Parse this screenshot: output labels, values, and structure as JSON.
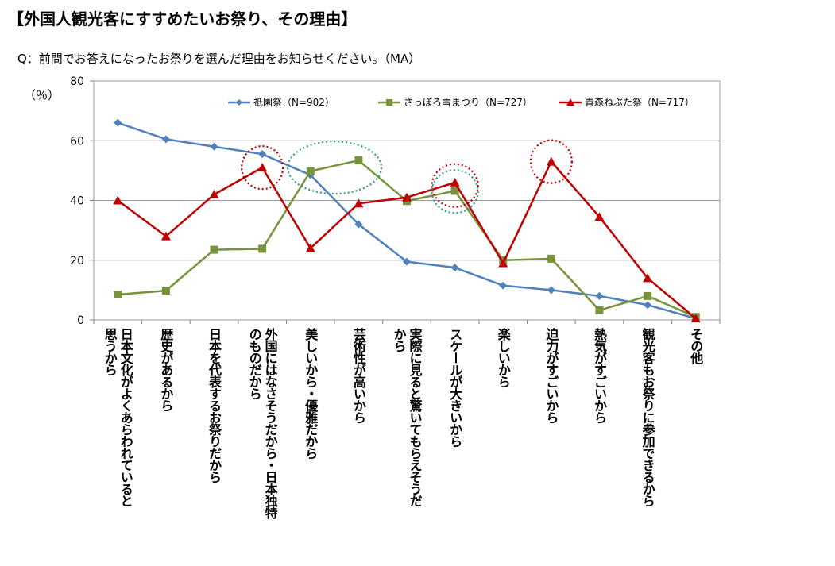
{
  "header": {
    "title": "【外国人観光客にすすめたいお祭り、その理由】",
    "question": "Q：前問でお答えになったお祭りを選んだ理由をお知らせください。（MA）"
  },
  "chart_data": {
    "type": "line",
    "ylabel": "（％）",
    "ylim": [
      0,
      80
    ],
    "yticks": [
      0,
      20,
      40,
      60,
      80
    ],
    "grid": true,
    "legend_position": "top",
    "categories": [
      "日本文化がよくあらわれていると思うから",
      "歴史があるから",
      "日本を代表するお祭りだから",
      "外国にはなさそうだから・日本独特のものだから",
      "美しいから・優雅だから",
      "芸術性が高いから",
      "実際に見ると驚いてもらえそうだから",
      "スケールが大きいから",
      "楽しいから",
      "迫力がすごいから",
      "熱気がすごいから",
      "観光客もお祭りに参加できるから",
      "その他"
    ],
    "category_lines": [
      [
        "日本文化がよくあらわれていると",
        "思うから"
      ],
      [
        "歴史があるから"
      ],
      [
        "日本を代表するお祭りだから"
      ],
      [
        "外国にはなさそうだから・日本独特",
        "のものだから"
      ],
      [
        "美しいから・優雅だから"
      ],
      [
        "芸術性が高いから"
      ],
      [
        "実際に見ると驚いてもらえそうだ",
        "から"
      ],
      [
        "スケールが大きいから"
      ],
      [
        "楽しいから"
      ],
      [
        "迫力がすごいから"
      ],
      [
        "熱気がすごいから"
      ],
      [
        "観光客もお祭りに参加できるから"
      ],
      [
        "その他"
      ]
    ],
    "series": [
      {
        "name": "祇園祭（N=902）",
        "color": "#4F81BD",
        "marker": "diamond",
        "values": [
          66,
          60.5,
          58,
          55.5,
          48.5,
          32,
          19.5,
          17.5,
          11.5,
          10,
          8,
          5,
          0.5
        ]
      },
      {
        "name": "さっぽろ雪まつり（N=727）",
        "color": "#77933C",
        "marker": "square",
        "values": [
          8.5,
          9.8,
          23.5,
          23.8,
          49.8,
          53.4,
          39.8,
          43.2,
          20,
          20.5,
          3.2,
          8,
          1
        ]
      },
      {
        "name": "青森ねぶた祭（N=717）",
        "color": "#C00000",
        "marker": "triangle",
        "values": [
          40,
          28,
          42,
          51,
          24,
          39,
          41,
          46,
          19,
          53,
          34.5,
          14,
          0.5
        ]
      }
    ],
    "highlights": [
      {
        "category_index": 3,
        "value": 51,
        "color": "#C00000"
      },
      {
        "category_index": 4.5,
        "value": 51,
        "color": "#2E9C8C"
      },
      {
        "category_index": 7,
        "value": 45,
        "color": "#C00000"
      },
      {
        "category_index": 7,
        "value": 43,
        "color": "#2E9C8C"
      },
      {
        "category_index": 9,
        "value": 53,
        "color": "#C00000"
      }
    ]
  }
}
